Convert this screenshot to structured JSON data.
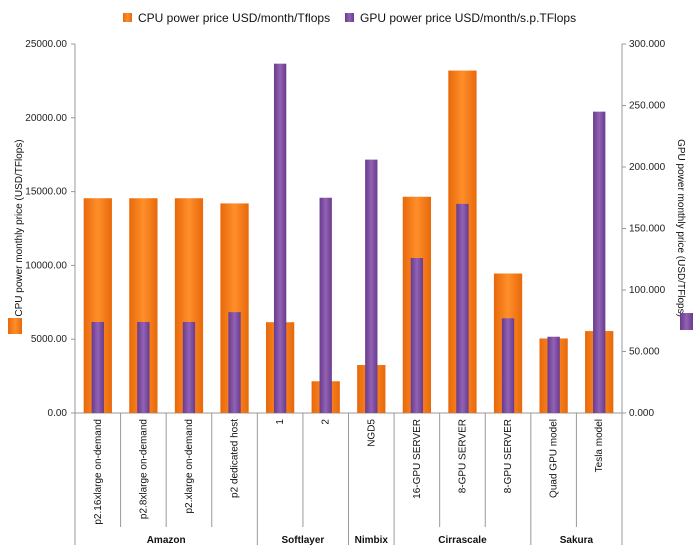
{
  "chart_data": {
    "type": "bar",
    "legend_position": "top",
    "grid": false,
    "categories": [
      "p2.16xlarge on-demand",
      "p2.8xlarge on-demand",
      "p2.xlarge on-demand",
      "p2 dedicated host",
      "1",
      "2",
      "NGD5",
      "16-GPU SERVER",
      "8-GPU SERVER",
      "8-GPU SERVER",
      "Quad GPU model",
      "Tesla model"
    ],
    "groups": [
      {
        "name": "Amazon",
        "count": 4
      },
      {
        "name": "Softlayer",
        "count": 2
      },
      {
        "name": "Nimbix",
        "count": 1
      },
      {
        "name": "Cirrascale",
        "count": 3
      },
      {
        "name": "Sakura",
        "count": 2
      }
    ],
    "series": [
      {
        "name": "CPU power price USD/month/Tflops",
        "axis": "left",
        "color": "#f47a0e",
        "values": [
          14550,
          14550,
          14550,
          14200,
          6150,
          2150,
          3250,
          14650,
          23200,
          9450,
          5050,
          5550
        ]
      },
      {
        "name": "GPU power price USD/month/s.p.TFlops",
        "axis": "right",
        "color": "#7b4a9e",
        "values": [
          74,
          74,
          74,
          82,
          284,
          175,
          206,
          126,
          170,
          77,
          62,
          245
        ]
      }
    ],
    "y_left": {
      "label": "CPU power monthly price (USD/TFlops)",
      "range": [
        0,
        25000
      ],
      "ticks": [
        "0.00",
        "5000.00",
        "10000.00",
        "15000.00",
        "20000.00",
        "25000.00"
      ]
    },
    "y_right": {
      "label": "GPU power monthly price (USD/TFlops)",
      "range": [
        0,
        300
      ],
      "ticks": [
        "0.000",
        "50.000",
        "100.000",
        "150.000",
        "200.000",
        "250.000",
        "300.000"
      ]
    }
  }
}
